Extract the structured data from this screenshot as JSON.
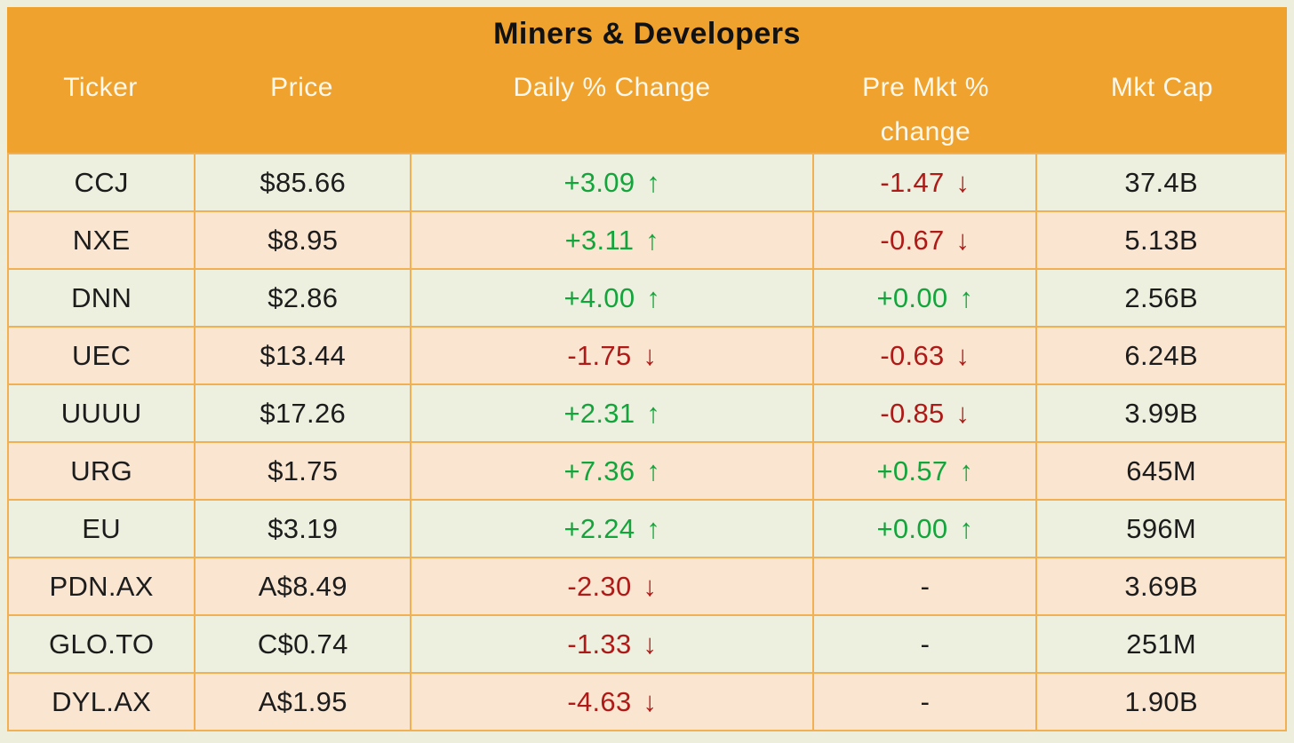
{
  "title": "Miners & Developers",
  "columns": [
    {
      "line1": "Ticker",
      "line2": ""
    },
    {
      "line1": "Price",
      "line2": ""
    },
    {
      "line1": "Daily % Change",
      "line2": ""
    },
    {
      "line1": "Pre Mkt %",
      "line2": "change"
    },
    {
      "line1": "Mkt Cap",
      "line2": ""
    }
  ],
  "arrows": {
    "up": "↑",
    "down": "↓"
  },
  "rows": [
    {
      "ticker": "CCJ",
      "price": "$85.66",
      "daily": "+3.09",
      "daily_dir": "up",
      "premkt": "-1.47",
      "premkt_dir": "down",
      "mktcap": "37.4B"
    },
    {
      "ticker": "NXE",
      "price": "$8.95",
      "daily": "+3.11",
      "daily_dir": "up",
      "premkt": "-0.67",
      "premkt_dir": "down",
      "mktcap": "5.13B"
    },
    {
      "ticker": "DNN",
      "price": "$2.86",
      "daily": "+4.00",
      "daily_dir": "up",
      "premkt": "+0.00",
      "premkt_dir": "up",
      "mktcap": "2.56B"
    },
    {
      "ticker": "UEC",
      "price": "$13.44",
      "daily": "-1.75",
      "daily_dir": "down",
      "premkt": "-0.63",
      "premkt_dir": "down",
      "mktcap": "6.24B"
    },
    {
      "ticker": "UUUU",
      "price": "$17.26",
      "daily": "+2.31",
      "daily_dir": "up",
      "premkt": "-0.85",
      "premkt_dir": "down",
      "mktcap": "3.99B"
    },
    {
      "ticker": "URG",
      "price": "$1.75",
      "daily": "+7.36",
      "daily_dir": "up",
      "premkt": "+0.57",
      "premkt_dir": "up",
      "mktcap": "645M"
    },
    {
      "ticker": "EU",
      "price": "$3.19",
      "daily": "+2.24",
      "daily_dir": "up",
      "premkt": "+0.00",
      "premkt_dir": "up",
      "mktcap": "596M"
    },
    {
      "ticker": "PDN.AX",
      "price": "A$8.49",
      "daily": "-2.30",
      "daily_dir": "down",
      "premkt": "-",
      "premkt_dir": null,
      "mktcap": "3.69B"
    },
    {
      "ticker": "GLO.TO",
      "price": "C$0.74",
      "daily": "-1.33",
      "daily_dir": "down",
      "premkt": "-",
      "premkt_dir": null,
      "mktcap": "251M"
    },
    {
      "ticker": "DYL.AX",
      "price": "A$1.95",
      "daily": "-4.63",
      "daily_dir": "down",
      "premkt": "-",
      "premkt_dir": null,
      "mktcap": "1.90B"
    }
  ],
  "colors": {
    "page_bg": "#EDEFDC",
    "header_bg": "#EFA32E",
    "row_green": "#EEF0DF",
    "row_peach": "#FAE5D1",
    "border": "#F2B053",
    "positive": "#13A53C",
    "negative": "#AE1A17",
    "title_text": "#111111",
    "header_text": "#FCF8EC",
    "cell_text": "#1C1C1C"
  },
  "chart_data": {
    "type": "table",
    "title": "Miners & Developers",
    "columns": [
      "Ticker",
      "Price",
      "Daily % Change",
      "Pre Mkt % change",
      "Mkt Cap"
    ],
    "rows": [
      [
        "CCJ",
        "$85.66",
        "+3.09 ↑",
        "-1.47 ↓",
        "37.4B"
      ],
      [
        "NXE",
        "$8.95",
        "+3.11 ↑",
        "-0.67 ↓",
        "5.13B"
      ],
      [
        "DNN",
        "$2.86",
        "+4.00 ↑",
        "+0.00 ↑",
        "2.56B"
      ],
      [
        "UEC",
        "$13.44",
        "-1.75 ↓",
        "-0.63 ↓",
        "6.24B"
      ],
      [
        "UUUU",
        "$17.26",
        "+2.31 ↑",
        "-0.85 ↓",
        "3.99B"
      ],
      [
        "URG",
        "$1.75",
        "+7.36 ↑",
        "+0.57 ↑",
        "645M"
      ],
      [
        "EU",
        "$3.19",
        "+2.24 ↑",
        "+0.00 ↑",
        "596M"
      ],
      [
        "PDN.AX",
        "A$8.49",
        "-2.30 ↓",
        "-",
        "3.69B"
      ],
      [
        "GLO.TO",
        "C$0.74",
        "-1.33 ↓",
        "-",
        "251M"
      ],
      [
        "DYL.AX",
        "A$1.95",
        "-4.63 ↓",
        "-",
        "1.90B"
      ]
    ]
  }
}
